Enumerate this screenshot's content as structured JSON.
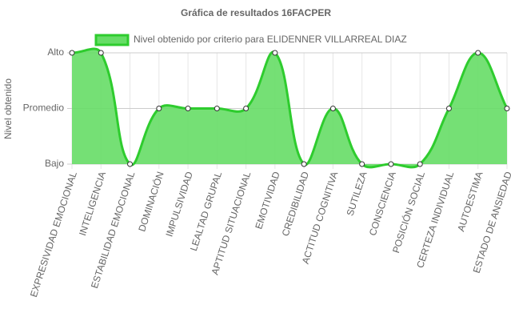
{
  "chart_data": {
    "type": "line",
    "title": "Gráfica de resultados 16FACPER",
    "y_label": "Nivel obtenido",
    "categories": [
      "EXPRESIVIDAD EMOCIONAL",
      "INTELIGENCIA",
      "ESTABILIDAD EMOCIONAL",
      "DOMINACIÓN",
      "IMPULSIVIDAD",
      "LEALTAD GRUPAL",
      "APTITUD SITUACIONAL",
      "EMOTIVIDAD",
      "CREDIBILIDAD",
      "ACTITUD COGNITIVA",
      "SUTILEZA",
      "CONSCIENCIA",
      "POSICIÓN SOCIAL",
      "CERTEZA INDIVIDUAL",
      "AUTOESTIMA",
      "ESTADO DE ANSIEDAD"
    ],
    "series": [
      {
        "name": "Nivel obtenido por criterio para ELIDENNER VILLARREAL DIAZ",
        "color": "#2ecc2e",
        "fill": "#66dd66",
        "values": [
          3,
          3,
          1,
          2,
          2,
          2,
          2,
          3,
          1,
          2,
          1,
          1,
          1,
          2,
          3,
          2
        ]
      }
    ],
    "ylim": [
      1,
      3
    ],
    "yticks": [
      {
        "value": 1,
        "label": "Bajo"
      },
      {
        "value": 2,
        "label": "Promedio"
      },
      {
        "value": 3,
        "label": "Alto"
      }
    ],
    "grid": true,
    "legend": "top"
  }
}
